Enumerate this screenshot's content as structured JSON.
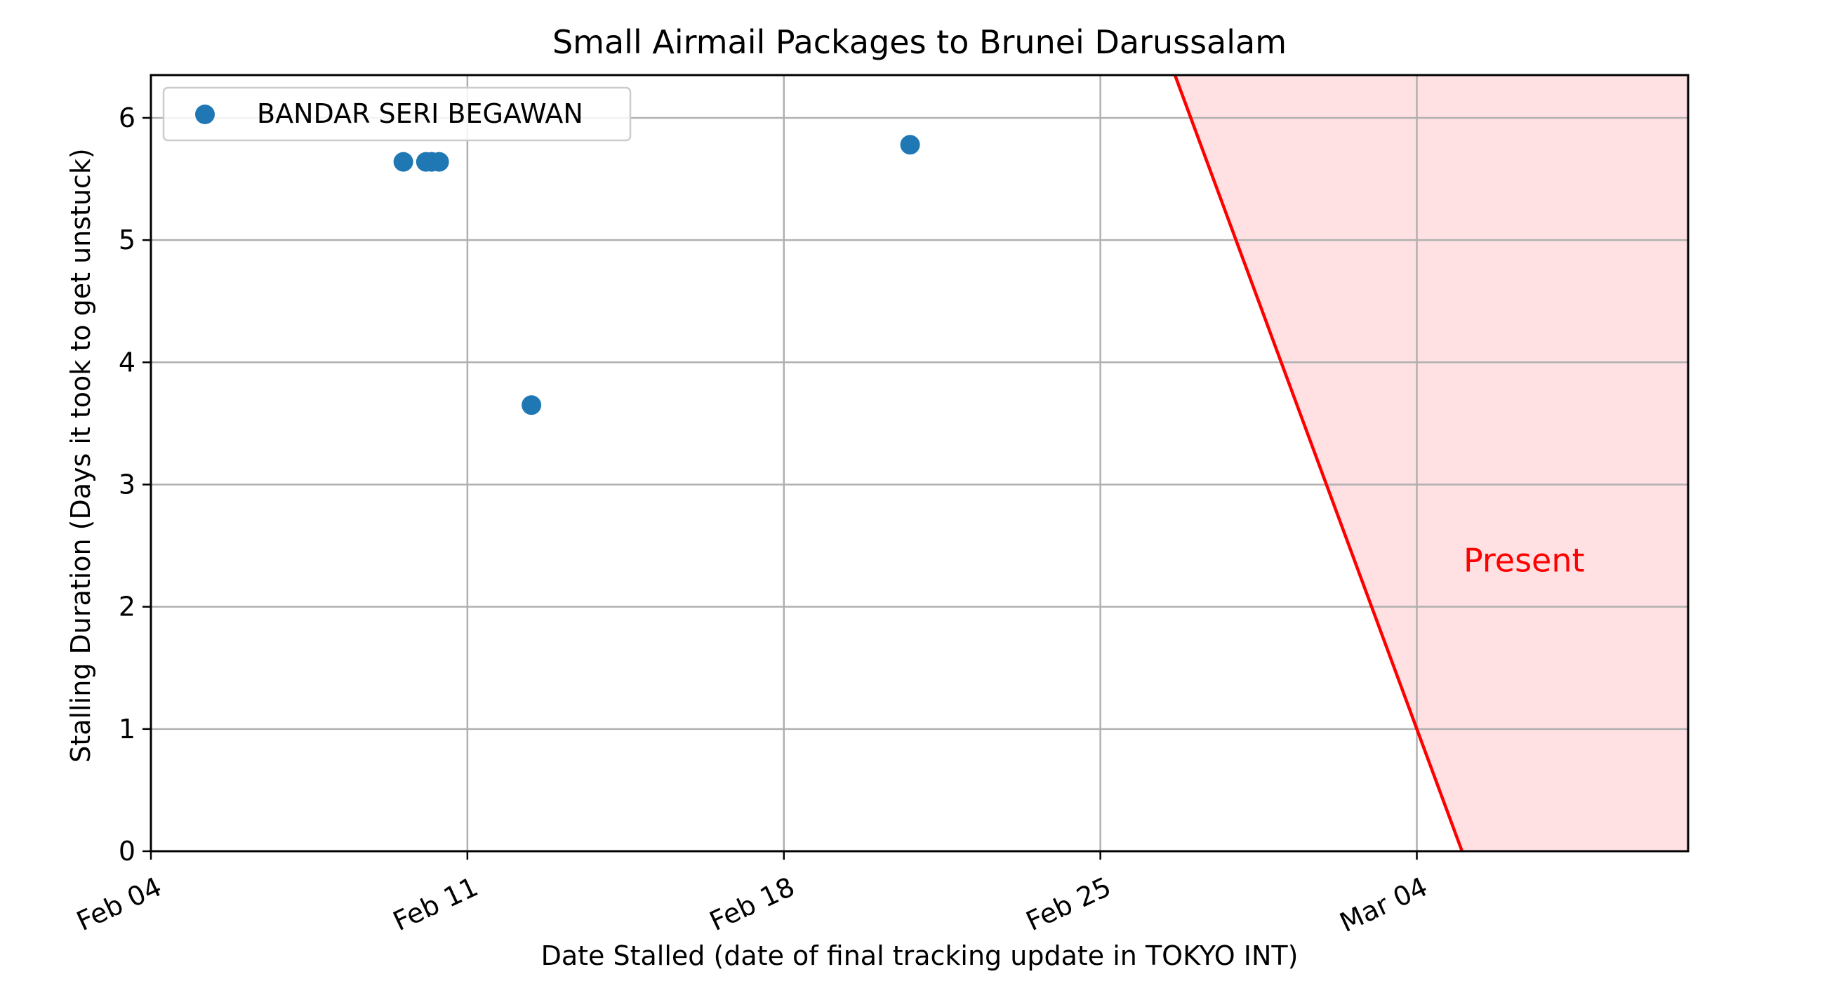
{
  "chart_data": {
    "type": "scatter",
    "title": "Small Airmail Packages to Brunei Darussalam",
    "xlabel": "Date Stalled (date of final tracking update in TOKYO INT)",
    "ylabel": "Stalling Duration (Days it took to get unstuck)",
    "x_tick_labels": [
      "Feb 04",
      "Feb 11",
      "Feb 18",
      "Feb 25",
      "Mar 04"
    ],
    "y_tick_labels": [
      "0",
      "1",
      "2",
      "3",
      "4",
      "5",
      "6"
    ],
    "xlim": [
      "2024-02-04T00:00",
      "2024-03-09T00:00"
    ],
    "ylim": [
      0,
      6.35
    ],
    "grid": true,
    "legend_position": "upper-left",
    "series": [
      {
        "name": "BANDAR SERI BEGAWAN",
        "color": "#1f77b4",
        "points": [
          {
            "x": "2024-02-09T14:00",
            "y": 5.64
          },
          {
            "x": "2024-02-10T02:00",
            "y": 5.64
          },
          {
            "x": "2024-02-10T05:00",
            "y": 5.64
          },
          {
            "x": "2024-02-10T09:00",
            "y": 5.64
          },
          {
            "x": "2024-02-12T10:00",
            "y": 3.65
          },
          {
            "x": "2024-02-20T19:00",
            "y": 5.78
          }
        ]
      }
    ],
    "present_line": {
      "label": "Present",
      "color": "#ff0000",
      "fill_color": "#ffe0e3",
      "anchor_date": "2024-03-04T00:00",
      "slope_days_per_day": -1
    }
  }
}
